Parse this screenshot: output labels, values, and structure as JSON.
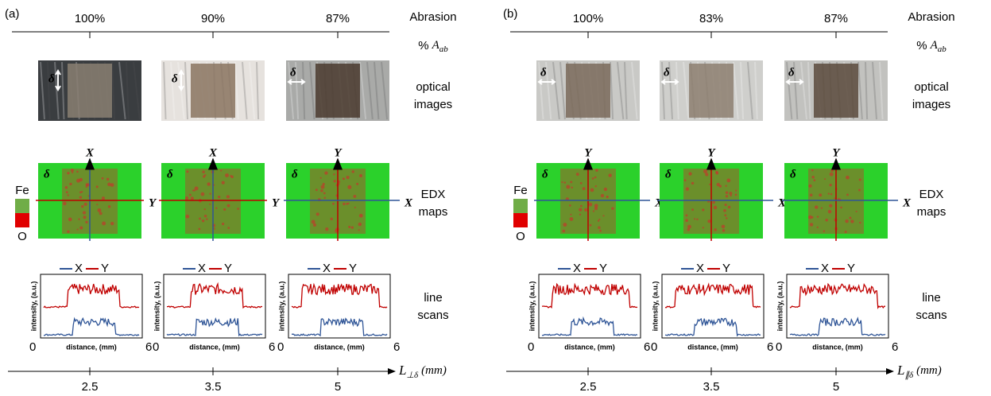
{
  "panels": [
    {
      "label": "(a)",
      "abrasion_title": "Abrasion",
      "abrasion_unit": {
        "prefix": "%",
        "symbol": "A",
        "subscript": "ab"
      },
      "rows": {
        "optical": [
          "optical",
          "images"
        ],
        "edx": [
          "EDX",
          "maps"
        ],
        "scans": [
          "line",
          "scans"
        ]
      },
      "edx_legend": {
        "top": "Fe",
        "bottom": "O"
      },
      "delta": "δ",
      "scan_legend": [
        "X",
        "Y"
      ],
      "scan_ylabel": "intensity, (a.u.)",
      "scan_xlabel": "distance, (mm)",
      "scan_xticks": [
        "0",
        "6"
      ],
      "axis_label": {
        "symbol": "L",
        "subscript": "⊥δ",
        "unit": "(mm)"
      },
      "columns": [
        {
          "abrasion": "100%",
          "position": "2.5",
          "edx_vertical": {
            "name": "X",
            "color": "#2f5597"
          },
          "edx_horizontal": {
            "name": "Y",
            "color": "#c00000"
          }
        },
        {
          "abrasion": "90%",
          "position": "3.5",
          "edx_vertical": {
            "name": "X",
            "color": "#2f5597"
          },
          "edx_horizontal": {
            "name": "Y",
            "color": "#c00000"
          }
        },
        {
          "abrasion": "87%",
          "position": "5",
          "edx_vertical": {
            "name": "Y",
            "color": "#c00000"
          },
          "edx_horizontal": {
            "name": "X",
            "color": "#2f5597"
          }
        }
      ]
    },
    {
      "label": "(b)",
      "abrasion_title": "Abrasion",
      "abrasion_unit": {
        "prefix": "%",
        "symbol": "A",
        "subscript": "ab"
      },
      "rows": {
        "optical": [
          "optical",
          "images"
        ],
        "edx": [
          "EDX",
          "maps"
        ],
        "scans": [
          "line",
          "scans"
        ]
      },
      "edx_legend": {
        "top": "Fe",
        "bottom": "O"
      },
      "delta": "δ",
      "scan_legend": [
        "X",
        "Y"
      ],
      "scan_ylabel": "intensity, (a.u.)",
      "scan_xlabel": "distance, (mm)",
      "scan_xticks": [
        "0",
        "6"
      ],
      "axis_label": {
        "symbol": "L",
        "subscript": "∥δ",
        "unit": "(mm)"
      },
      "columns": [
        {
          "abrasion": "100%",
          "position": "2.5",
          "edx_vertical": {
            "name": "Y",
            "color": "#c00000"
          },
          "edx_horizontal": {
            "name": "X",
            "color": "#2f5597"
          }
        },
        {
          "abrasion": "83%",
          "position": "3.5",
          "edx_vertical": {
            "name": "Y",
            "color": "#c00000"
          },
          "edx_horizontal": {
            "name": "X",
            "color": "#2f5597"
          }
        },
        {
          "abrasion": "87%",
          "position": "5",
          "edx_vertical": {
            "name": "Y",
            "color": "#c00000"
          },
          "edx_horizontal": {
            "name": "X",
            "color": "#2f5597"
          }
        }
      ]
    }
  ]
}
